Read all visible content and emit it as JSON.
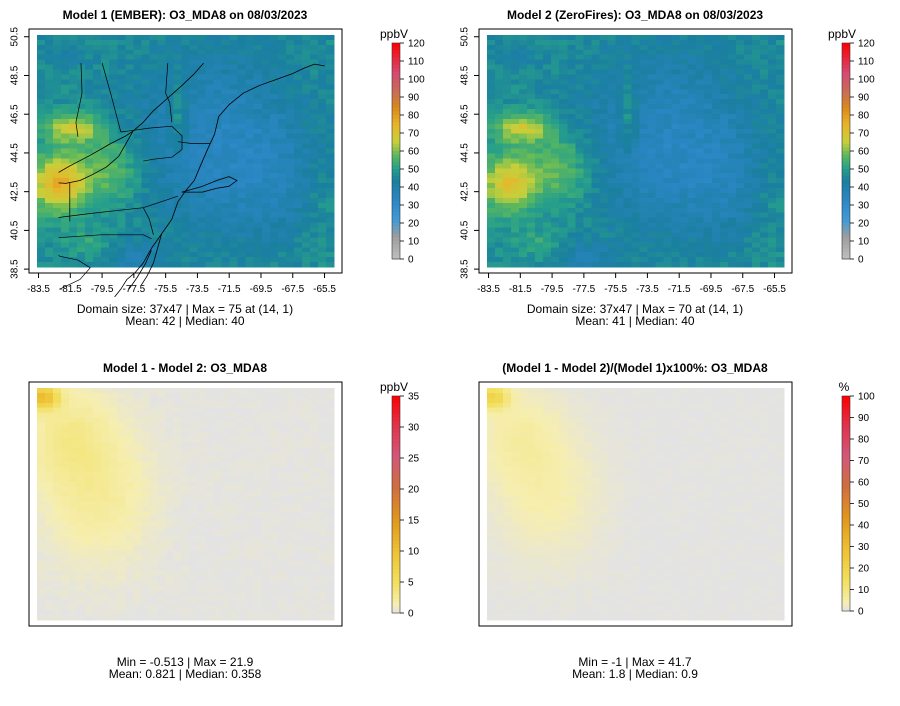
{
  "chart_data": [
    {
      "type": "heatmap",
      "title": "Model 1 (EMBER): O3_MDA8 on 08/03/2023",
      "x_ticks": [
        "-83.5",
        "-81.5",
        "-79.5",
        "-77.5",
        "-75.5",
        "-73.5",
        "-71.5",
        "-69.5",
        "-67.5",
        "-65.5"
      ],
      "y_ticks": [
        "38.5",
        "40.5",
        "42.5",
        "44.5",
        "46.5",
        "48.5",
        "50.5"
      ],
      "xlim": [
        -84.1,
        -64.4
      ],
      "ylim": [
        38.3,
        50.9
      ],
      "colorbar": {
        "unit": "ppbV",
        "ticks": [
          "0",
          "10",
          "20",
          "30",
          "40",
          "50",
          "60",
          "70",
          "80",
          "90",
          "100",
          "110",
          "120"
        ],
        "range": [
          0,
          120
        ],
        "palette": "ozone"
      },
      "field": {
        "kind": "ozone",
        "max_value": 75,
        "domain_mean": 42
      },
      "stats": [
        "Domain size: 37x47 | Max = 75 at (14, 1)",
        "Mean: 42 |  Median: 40"
      ]
    },
    {
      "type": "heatmap",
      "title": "Model 2 (ZeroFires): O3_MDA8 on 08/03/2023",
      "x_ticks": [
        "-83.5",
        "-81.5",
        "-79.5",
        "-77.5",
        "-75.5",
        "-73.5",
        "-71.5",
        "-69.5",
        "-67.5",
        "-65.5"
      ],
      "y_ticks": [
        "38.5",
        "40.5",
        "42.5",
        "44.5",
        "46.5",
        "48.5",
        "50.5"
      ],
      "xlim": [
        -84.1,
        -64.4
      ],
      "ylim": [
        38.3,
        50.9
      ],
      "colorbar": {
        "unit": "ppbV",
        "ticks": [
          "0",
          "10",
          "20",
          "30",
          "40",
          "50",
          "60",
          "70",
          "80",
          "90",
          "100",
          "110",
          "120"
        ],
        "range": [
          0,
          120
        ],
        "palette": "ozone"
      },
      "field": {
        "kind": "ozone",
        "max_value": 70,
        "domain_mean": 41
      },
      "stats": [
        "Domain size: 37x47 | Max = 70 at (14, 1)",
        "Mean: 41 |  Median: 40"
      ]
    },
    {
      "type": "heatmap",
      "title": "Model 1 - Model 2: O3_MDA8",
      "colorbar": {
        "unit": "ppbV",
        "ticks": [
          "0",
          "5",
          "10",
          "15",
          "20",
          "25",
          "30",
          "35"
        ],
        "range": [
          0,
          35
        ],
        "palette": "diff"
      },
      "field": {
        "kind": "diff",
        "max_value": 21.9,
        "domain_mean": 0.821
      },
      "stats": [
        "Min = -0.513 | Max = 21.9",
        "Mean: 0.821 |  Median: 0.358"
      ]
    },
    {
      "type": "heatmap",
      "title": "(Model 1 - Model 2)/(Model 1)x100%: O3_MDA8",
      "colorbar": {
        "unit": "%",
        "ticks": [
          "0",
          "10",
          "20",
          "30",
          "40",
          "50",
          "60",
          "70",
          "80",
          "90",
          "100"
        ],
        "range": [
          0,
          100
        ],
        "palette": "diff"
      },
      "field": {
        "kind": "pct",
        "max_value": 41.7,
        "domain_mean": 1.8
      },
      "stats": [
        "Min = -1 | Max = 41.7",
        "Mean: 1.8 |  Median: 0.9"
      ]
    }
  ]
}
